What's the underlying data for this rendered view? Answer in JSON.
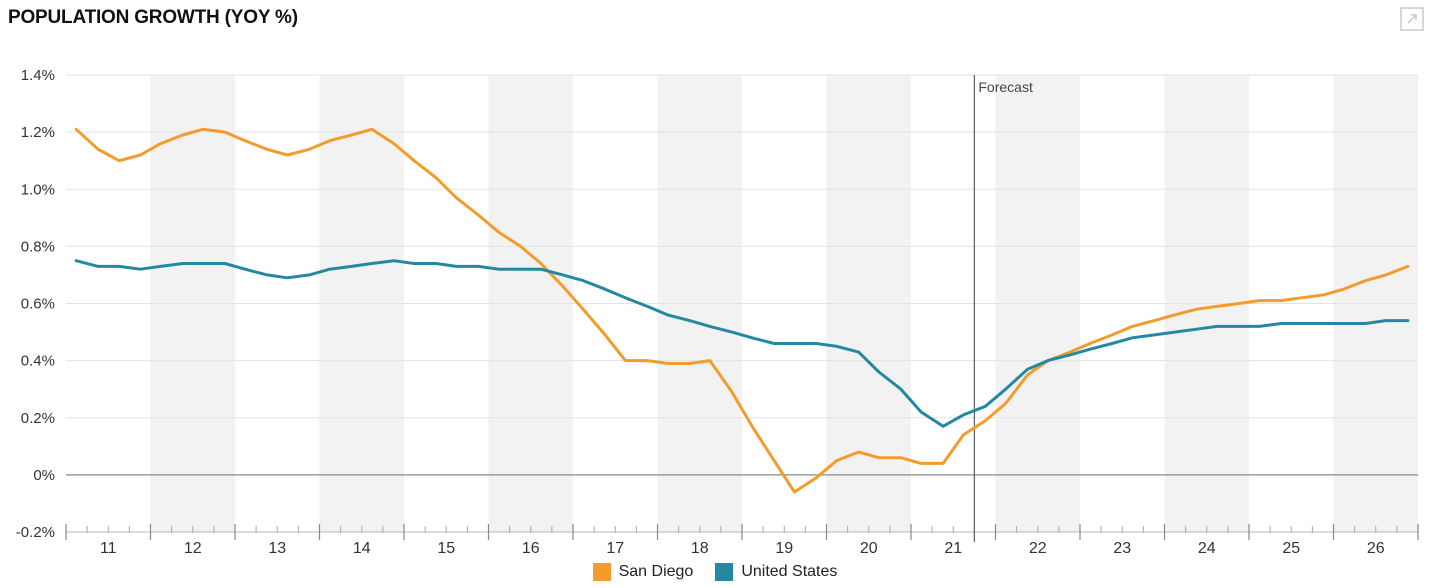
{
  "title": "POPULATION GROWTH (YOY %)",
  "icons": {
    "expand": "expand-icon"
  },
  "colors": {
    "san_diego": "#F39C2B",
    "united_states": "#2588A3",
    "band": "#F2F2F2",
    "grid": "#E3E3E3",
    "zero": "#8A8A8A",
    "forecast_line": "#666666"
  },
  "chart_data": {
    "type": "line",
    "title": "POPULATION GROWTH (YOY %)",
    "xlabel": "",
    "ylabel": "",
    "ylim": [
      -0.2,
      1.4
    ],
    "yticks": [
      -0.2,
      0,
      0.2,
      0.4,
      0.6,
      0.8,
      1.0,
      1.2,
      1.4
    ],
    "ytick_labels": [
      "-0.2%",
      "0%",
      "0.2%",
      "0.4%",
      "0.6%",
      "0.8%",
      "1.0%",
      "1.2%",
      "1.4%"
    ],
    "xlim": [
      2010.5,
      2026.5
    ],
    "xtick_labels": [
      "11",
      "12",
      "13",
      "14",
      "15",
      "16",
      "17",
      "18",
      "19",
      "20",
      "21",
      "22",
      "23",
      "24",
      "25",
      "26"
    ],
    "alternating_year_bands": true,
    "grid": true,
    "legend_position": "bottom-center",
    "forecast": {
      "label": "Forecast",
      "x": 2021.25
    },
    "series": [
      {
        "name": "San Diego",
        "color": "#F39C2B",
        "x": [
          2010.62,
          2010.88,
          2011.13,
          2011.38,
          2011.62,
          2011.88,
          2012.12,
          2012.38,
          2012.62,
          2012.88,
          2013.12,
          2013.38,
          2013.62,
          2013.88,
          2014.12,
          2014.38,
          2014.62,
          2014.88,
          2015.12,
          2015.38,
          2015.62,
          2015.88,
          2016.12,
          2016.38,
          2016.62,
          2016.88,
          2017.12,
          2017.38,
          2017.62,
          2017.88,
          2018.12,
          2018.38,
          2018.62,
          2018.88,
          2019.12,
          2019.38,
          2019.62,
          2019.88,
          2020.12,
          2020.38,
          2020.62,
          2020.88,
          2021.12,
          2021.38,
          2021.62,
          2021.88,
          2022.12,
          2022.38,
          2022.62,
          2022.88,
          2023.12,
          2023.38,
          2023.62,
          2023.88,
          2024.12,
          2024.38,
          2024.62,
          2024.88,
          2025.12,
          2025.38,
          2025.62,
          2025.88,
          2026.12,
          2026.38
        ],
        "values": [
          1.21,
          1.14,
          1.1,
          1.12,
          1.16,
          1.19,
          1.21,
          1.2,
          1.17,
          1.14,
          1.12,
          1.14,
          1.17,
          1.19,
          1.21,
          1.16,
          1.1,
          1.04,
          0.97,
          0.91,
          0.85,
          0.8,
          0.74,
          0.66,
          0.58,
          0.49,
          0.4,
          0.4,
          0.39,
          0.39,
          0.4,
          0.29,
          0.17,
          0.05,
          -0.06,
          -0.01,
          0.05,
          0.08,
          0.06,
          0.06,
          0.04,
          0.04,
          0.14,
          0.19,
          0.25,
          0.35,
          0.4,
          0.43,
          0.46,
          0.49,
          0.52,
          0.54,
          0.56,
          0.58,
          0.59,
          0.6,
          0.61,
          0.61,
          0.62,
          0.63,
          0.65,
          0.68,
          0.7,
          0.73
        ]
      },
      {
        "name": "United States",
        "color": "#2588A3",
        "x": [
          2010.62,
          2010.88,
          2011.13,
          2011.38,
          2011.62,
          2011.88,
          2012.12,
          2012.38,
          2012.62,
          2012.88,
          2013.12,
          2013.38,
          2013.62,
          2013.88,
          2014.12,
          2014.38,
          2014.62,
          2014.88,
          2015.12,
          2015.38,
          2015.62,
          2015.88,
          2016.12,
          2016.38,
          2016.62,
          2016.88,
          2017.12,
          2017.38,
          2017.62,
          2017.88,
          2018.12,
          2018.38,
          2018.62,
          2018.88,
          2019.12,
          2019.38,
          2019.62,
          2019.88,
          2020.12,
          2020.38,
          2020.62,
          2020.88,
          2021.12,
          2021.38,
          2021.62,
          2021.88,
          2022.12,
          2022.38,
          2022.62,
          2022.88,
          2023.12,
          2023.38,
          2023.62,
          2023.88,
          2024.12,
          2024.38,
          2024.62,
          2024.88,
          2025.12,
          2025.38,
          2025.62,
          2025.88,
          2026.12,
          2026.38
        ],
        "values": [
          0.75,
          0.73,
          0.73,
          0.72,
          0.73,
          0.74,
          0.74,
          0.74,
          0.72,
          0.7,
          0.69,
          0.7,
          0.72,
          0.73,
          0.74,
          0.75,
          0.74,
          0.74,
          0.73,
          0.73,
          0.72,
          0.72,
          0.72,
          0.7,
          0.68,
          0.65,
          0.62,
          0.59,
          0.56,
          0.54,
          0.52,
          0.5,
          0.48,
          0.46,
          0.46,
          0.46,
          0.45,
          0.43,
          0.36,
          0.3,
          0.22,
          0.17,
          0.21,
          0.24,
          0.3,
          0.37,
          0.4,
          0.42,
          0.44,
          0.46,
          0.48,
          0.49,
          0.5,
          0.51,
          0.52,
          0.52,
          0.52,
          0.53,
          0.53,
          0.53,
          0.53,
          0.53,
          0.54,
          0.54
        ]
      }
    ]
  }
}
